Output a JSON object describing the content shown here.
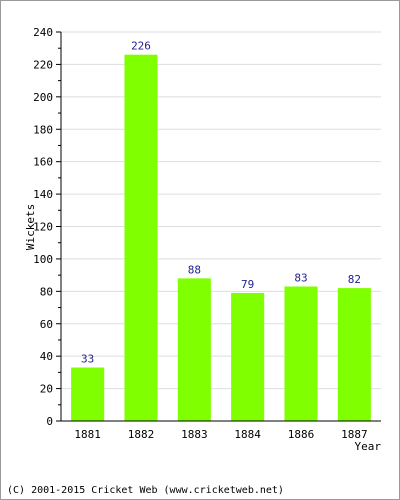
{
  "chart_data": {
    "type": "bar",
    "categories": [
      "1881",
      "1882",
      "1883",
      "1884",
      "1886",
      "1887"
    ],
    "values": [
      33,
      226,
      88,
      79,
      83,
      82
    ],
    "title": "",
    "xlabel": "Year",
    "ylabel": "Wickets",
    "ylim": [
      0,
      240
    ],
    "y_ticks": [
      "0",
      "20",
      "40",
      "60",
      "80",
      "100",
      "120",
      "140",
      "160",
      "180",
      "200",
      "220",
      "240"
    ],
    "grid": true,
    "legend": "none",
    "bar_color": "#80ff00",
    "value_label_color": "#1f1f8f",
    "grid_color": "#dddddd"
  },
  "footer": {
    "copyright": "(C) 2001-2015 Cricket Web (www.cricketweb.net)"
  }
}
